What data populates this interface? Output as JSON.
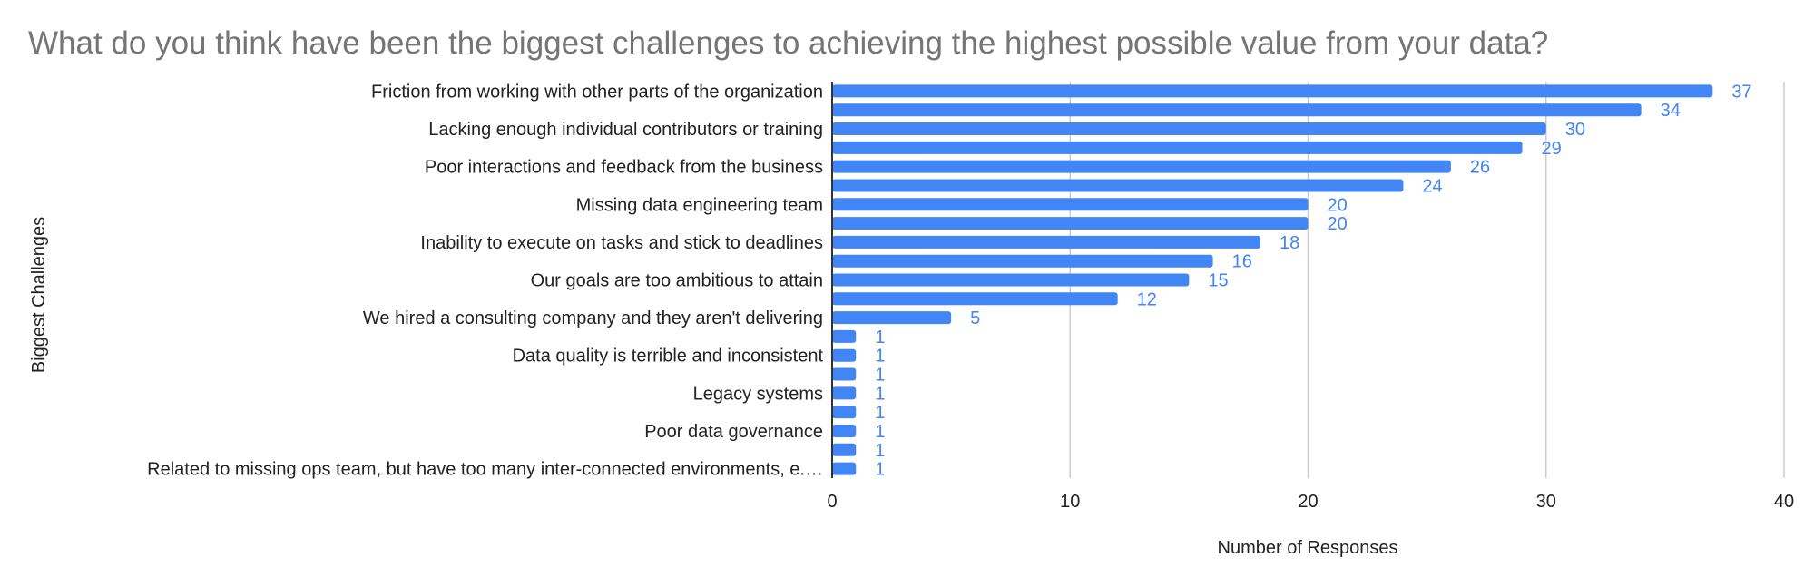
{
  "colors": {
    "bar": "#4285f4",
    "data_label": "#4285f4",
    "grid": "#cccccc",
    "axis": "#333333",
    "title": "#757575"
  },
  "chart_data": {
    "type": "bar",
    "orientation": "horizontal",
    "title": "What do you think have been the biggest challenges to achieving the highest possible value from your data?",
    "xlabel": "Number of Responses",
    "ylabel": "Biggest Challenges",
    "xlim": [
      0,
      40
    ],
    "xticks": [
      0,
      10,
      20,
      30,
      40
    ],
    "grid": true,
    "legend": "none",
    "categories": [
      "Friction from working with other parts of the organization",
      "",
      "Lacking enough individual contributors or training",
      "",
      "Poor interactions and feedback from the business",
      "",
      "Missing data engineering team",
      "",
      "Inability to execute on tasks and stick to deadlines",
      "",
      "Our goals are too ambitious to attain",
      "",
      "We hired a consulting company and they aren't delivering",
      "",
      "Data quality is terrible and inconsistent",
      "",
      "Legacy systems",
      "",
      "Poor data governance",
      "",
      "Related to missing ops team, but have too many inter-connected environments, e.…"
    ],
    "values": [
      37,
      34,
      30,
      29,
      26,
      24,
      20,
      20,
      18,
      16,
      15,
      12,
      5,
      1,
      1,
      1,
      1,
      1,
      1,
      1,
      1
    ]
  }
}
